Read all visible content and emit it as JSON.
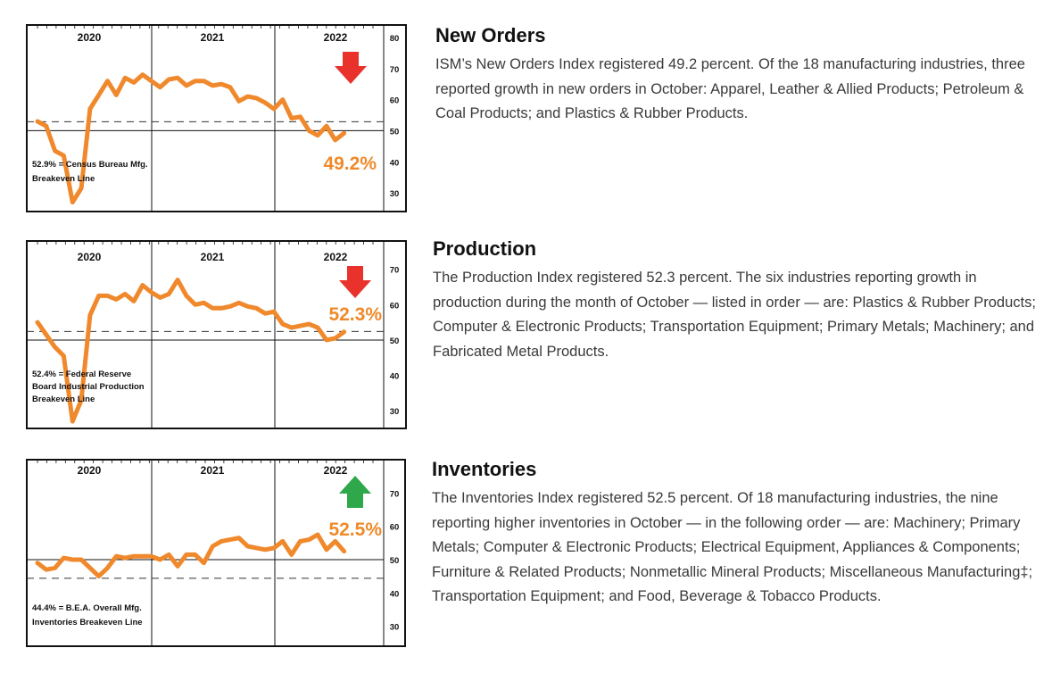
{
  "sections": [
    {
      "id": "new-orders",
      "heading": "New Orders",
      "body": "ISM’s New Orders Index registered 49.2 percent. Of the 18 manufacturing industries, three reported growth in new orders in October: Apparel, Leather & Allied Products; Petroleum & Coal Products; and Plastics & Rubber Products."
    },
    {
      "id": "production",
      "heading": "Production",
      "body": "The Production Index registered 52.3 percent. The six industries reporting growth in production during the month of October — listed in order — are: Plastics & Rubber Products; Computer & Electronic Products; Transportation Equipment; Primary Metals; Machinery; and Fabricated Metal Products."
    },
    {
      "id": "inventories",
      "heading": "Inventories",
      "body": "The Inventories Index registered 52.5 percent. Of 18 manufacturing industries, the nine reporting higher inventories in October — in the following order — are: Machinery; Primary Metals; Computer & Electronic Products; Electrical Equipment, Appliances & Components; Furniture & Related Products; Nonmetallic Mineral Products; Miscellaneous Manufacturing‡; Transportation Equipment; and Food, Beverage & Tobacco Products."
    }
  ],
  "chart_data": [
    {
      "type": "line",
      "years": [
        "2020",
        "2021",
        "2022"
      ],
      "yticks": [
        30,
        40,
        50,
        60,
        70,
        80
      ],
      "ylim": [
        24,
        84
      ],
      "baseline": 50,
      "breakeven": 52.9,
      "breakeven_label": [
        "52.9% = Census Bureau Mfg.",
        "Breakeven Line"
      ],
      "current_label": "49.2%",
      "direction": "down",
      "arrow_color": "#e8322b",
      "line_color": "#f0882c",
      "x": [
        "2019-11",
        "2019-12",
        "2020-01",
        "2020-02",
        "2020-03",
        "2020-04",
        "2020-05",
        "2020-06",
        "2020-07",
        "2020-08",
        "2020-09",
        "2020-10",
        "2020-11",
        "2020-12",
        "2021-01",
        "2021-02",
        "2021-03",
        "2021-04",
        "2021-05",
        "2021-06",
        "2021-07",
        "2021-08",
        "2021-09",
        "2021-10",
        "2021-11",
        "2021-12",
        "2022-01",
        "2022-02",
        "2022-03",
        "2022-04",
        "2022-05",
        "2022-06",
        "2022-07",
        "2022-08",
        "2022-09",
        "2022-10"
      ],
      "values": [
        53.0,
        51.5,
        43.5,
        42.0,
        27.0,
        31.5,
        57.0,
        61.5,
        66.0,
        61.5,
        67.0,
        65.5,
        68.0,
        66.0,
        64.0,
        66.5,
        67.0,
        64.5,
        66.0,
        66.0,
        64.5,
        65.0,
        64.0,
        59.5,
        61.0,
        60.5,
        59.0,
        57.0,
        60.0,
        54.0,
        54.5,
        50.0,
        48.5,
        51.5,
        47.0,
        49.2
      ]
    },
    {
      "type": "line",
      "years": [
        "2020",
        "2021",
        "2022"
      ],
      "yticks": [
        30,
        40,
        50,
        60,
        70
      ],
      "ylim": [
        25,
        78
      ],
      "baseline": 50,
      "breakeven": 52.4,
      "breakeven_label": [
        "52.4% = Federal Reserve",
        "Board Industrial Production",
        "Breakeven Line"
      ],
      "current_label": "52.3%",
      "direction": "down",
      "arrow_color": "#e8322b",
      "line_color": "#f0882c",
      "x": [
        "2019-11",
        "2019-12",
        "2020-01",
        "2020-02",
        "2020-03",
        "2020-04",
        "2020-05",
        "2020-06",
        "2020-07",
        "2020-08",
        "2020-09",
        "2020-10",
        "2020-11",
        "2020-12",
        "2021-01",
        "2021-02",
        "2021-03",
        "2021-04",
        "2021-05",
        "2021-06",
        "2021-07",
        "2021-08",
        "2021-09",
        "2021-10",
        "2021-11",
        "2021-12",
        "2022-01",
        "2022-02",
        "2022-03",
        "2022-04",
        "2022-05",
        "2022-06",
        "2022-07",
        "2022-08",
        "2022-09",
        "2022-10"
      ],
      "values": [
        55.0,
        51.5,
        48.0,
        45.5,
        27.0,
        33.0,
        57.0,
        62.5,
        62.5,
        61.5,
        63.0,
        61.0,
        65.5,
        63.5,
        62.0,
        63.0,
        67.0,
        62.5,
        60.0,
        60.5,
        59.0,
        59.0,
        59.5,
        60.5,
        59.5,
        59.0,
        57.5,
        58.0,
        54.5,
        53.5,
        54.0,
        54.5,
        53.5,
        50.0,
        50.5,
        52.3
      ]
    },
    {
      "type": "line",
      "years": [
        "2020",
        "2021",
        "2022"
      ],
      "yticks": [
        30,
        40,
        50,
        60,
        70
      ],
      "ylim": [
        24,
        80
      ],
      "baseline": 50,
      "breakeven": 44.4,
      "breakeven_label": [
        "44.4% = B.E.A. Overall Mfg.",
        "Inventories Breakeven Line"
      ],
      "current_label": "52.5%",
      "direction": "up",
      "arrow_color": "#2ea84a",
      "line_color": "#f0882c",
      "x": [
        "2019-11",
        "2019-12",
        "2020-01",
        "2020-02",
        "2020-03",
        "2020-04",
        "2020-05",
        "2020-06",
        "2020-07",
        "2020-08",
        "2020-09",
        "2020-10",
        "2020-11",
        "2020-12",
        "2021-01",
        "2021-02",
        "2021-03",
        "2021-04",
        "2021-05",
        "2021-06",
        "2021-07",
        "2021-08",
        "2021-09",
        "2021-10",
        "2021-11",
        "2021-12",
        "2022-01",
        "2022-02",
        "2022-03",
        "2022-04",
        "2022-05",
        "2022-06",
        "2022-07",
        "2022-08",
        "2022-09",
        "2022-10"
      ],
      "values": [
        49.0,
        47.0,
        47.5,
        50.5,
        50.0,
        50.0,
        47.5,
        45.0,
        47.5,
        51.0,
        50.5,
        51.0,
        51.0,
        51.0,
        50.0,
        51.5,
        48.0,
        51.5,
        51.5,
        49.0,
        54.0,
        55.5,
        56.0,
        56.5,
        54.0,
        53.5,
        53.0,
        53.5,
        55.5,
        51.5,
        55.5,
        56.0,
        57.5,
        53.0,
        55.5,
        52.5
      ]
    }
  ]
}
